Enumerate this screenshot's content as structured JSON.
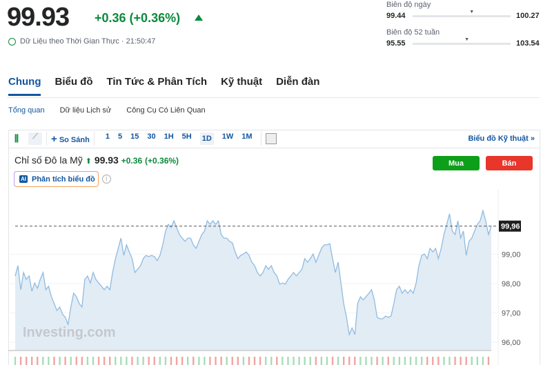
{
  "header": {
    "price": "99.93",
    "change": "+0.36 (+0.36%)",
    "realtime": "Dữ Liệu theo Thời Gian Thực · 21:50:47"
  },
  "ranges": [
    {
      "label": "Biên độ ngày",
      "low": "99.44",
      "high": "100.27",
      "marker": 0.6
    },
    {
      "label": "Biên độ 52 tuần",
      "low": "95.55",
      "high": "103.54",
      "marker": 0.55
    }
  ],
  "tabs": [
    "Chung",
    "Biểu đồ",
    "Tin Tức & Phân Tích",
    "Kỹ thuật",
    "Diễn đàn"
  ],
  "subtabs": [
    "Tổng quan",
    "Dữ liệu Lịch sử",
    "Công Cụ Có Liên Quan"
  ],
  "toolbar": {
    "compare": "So Sánh",
    "intervals": [
      "1",
      "5",
      "15",
      "30",
      "1H",
      "5H",
      "1D",
      "1W",
      "1M"
    ],
    "selected": "1D",
    "tech": "Biểu đồ Kỹ thuật »"
  },
  "instrument": {
    "name": "Chỉ số Đô la Mỹ",
    "price": "99.93",
    "change": "+0.36",
    "pct": "(+0.36%)",
    "buy": "Mua",
    "sell": "Bán",
    "ai": "Phân tích biểu đồ"
  },
  "colors": {
    "up": "#0a8a3c",
    "down": "#e8362a",
    "accent": "#1256a0",
    "line": "#8fbbe0",
    "fill": "#e2ecf5"
  },
  "watermark": "Investing.com",
  "chart_data": {
    "type": "area",
    "ylim": [
      95.7,
      100.9
    ],
    "yticks": [
      "99,00",
      "98,00",
      "97,00",
      "96,00"
    ],
    "ytick_values": [
      99,
      98,
      97,
      96
    ],
    "last_label": "99,96",
    "last_value": 99.96,
    "values": [
      98.26,
      98.61,
      97.79,
      98.38,
      98.14,
      98.26,
      97.74,
      98.02,
      97.84,
      98.14,
      98.38,
      97.79,
      97.91,
      97.55,
      97.32,
      97.08,
      97.2,
      96.96,
      96.85,
      96.61,
      97.2,
      97.67,
      97.55,
      97.32,
      97.2,
      98.14,
      98.26,
      98.02,
      98.38,
      98.14,
      98.02,
      97.91,
      97.79,
      97.91,
      97.79,
      98.38,
      98.85,
      99.2,
      99.55,
      98.96,
      99.32,
      99.08,
      98.85,
      98.38,
      98.49,
      98.61,
      98.85,
      98.96,
      98.92,
      98.96,
      98.92,
      98.78,
      98.96,
      99.32,
      99.79,
      100.02,
      99.91,
      100.14,
      99.91,
      99.67,
      99.55,
      99.44,
      99.55,
      99.55,
      99.32,
      99.2,
      99.44,
      99.67,
      99.79,
      100.14,
      100.02,
      100.14,
      100.02,
      100.14,
      99.67,
      99.55,
      99.55,
      99.44,
      99.39,
      99.08,
      98.85,
      98.96,
      99.01,
      99.08,
      98.96,
      98.73,
      98.61,
      98.38,
      98.26,
      98.38,
      98.61,
      98.49,
      98.61,
      98.38,
      98.26,
      97.98,
      98.02,
      97.98,
      98.14,
      98.26,
      98.38,
      98.26,
      98.38,
      98.49,
      98.85,
      98.73,
      98.85,
      99.01,
      98.73,
      98.96,
      99.2,
      99.32,
      99.32,
      99.36,
      98.85,
      98.38,
      98.73,
      98.02,
      97.32,
      96.85,
      96.26,
      96.49,
      96.26,
      97.32,
      97.55,
      97.44,
      97.55,
      97.67,
      97.79,
      97.44,
      96.85,
      96.8,
      96.8,
      96.89,
      96.85,
      96.89,
      97.32,
      97.79,
      97.91,
      97.67,
      97.79,
      97.67,
      97.79,
      97.67,
      98.02,
      98.61,
      98.96,
      99.01,
      98.85,
      99.2,
      99.08,
      99.2,
      98.85,
      99.2,
      99.67,
      100.02,
      100.38,
      99.79,
      99.67,
      100.14,
      99.55,
      99.79,
      98.96,
      99.44,
      99.55,
      99.79,
      100.02,
      100.14,
      100.49,
      100.14,
      99.67,
      99.96
    ]
  }
}
